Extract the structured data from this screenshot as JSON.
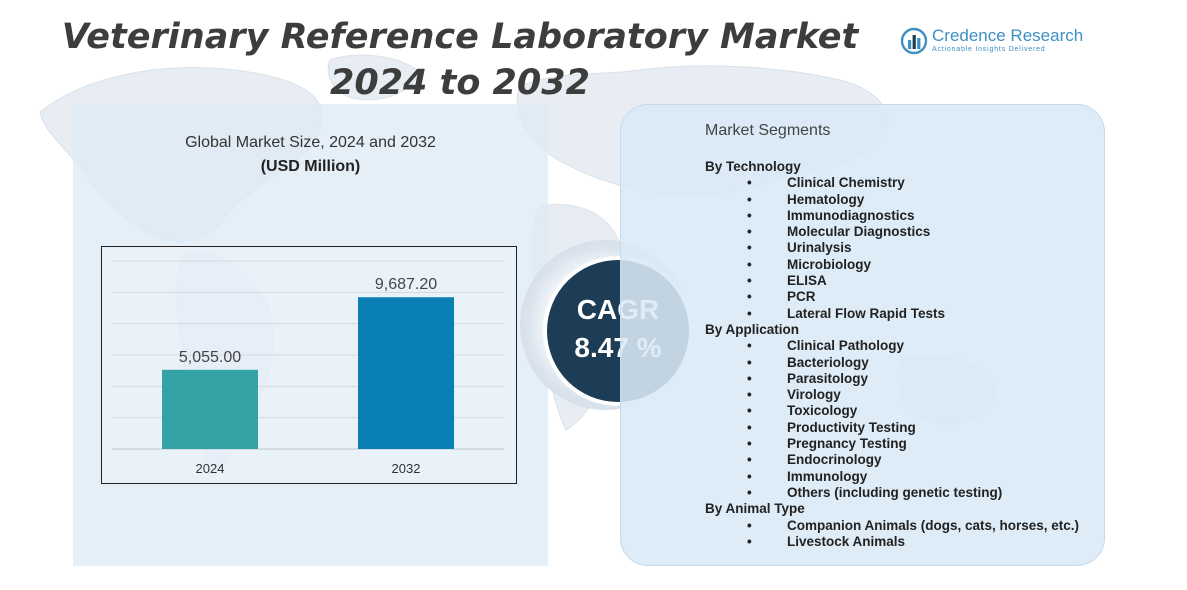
{
  "header": {
    "title_line1": "Veterinary Reference Laboratory Market",
    "title_line2": "2024 to 2032"
  },
  "logo": {
    "name": "Credence Research",
    "tagline": "Actionable Insights Delivered"
  },
  "chart": {
    "title": "Global Market Size, 2024 and 2032",
    "unit": "(USD Million)"
  },
  "chart_data": {
    "type": "bar",
    "title": "Global Market Size, 2024 and 2032",
    "ylabel": "(USD Million)",
    "xlabel": "",
    "categories": [
      "2024",
      "2032"
    ],
    "values": [
      5055.0,
      9687.2
    ],
    "data_labels": [
      "5,055.00",
      "9,687.20"
    ],
    "colors": [
      "#35a3a5",
      "#0a7fb3"
    ],
    "ylim": [
      0,
      12000
    ],
    "grid": true,
    "legend": "none"
  },
  "cagr": {
    "label": "CAGR",
    "value": "8.47 %",
    "color": "#1d3c55"
  },
  "segments": {
    "title": "Market Segments",
    "groups": [
      {
        "name": "By Technology",
        "items": [
          "Clinical Chemistry",
          "Hematology",
          "Immunodiagnostics",
          "Molecular Diagnostics",
          "Urinalysis",
          "Microbiology",
          "ELISA",
          "PCR",
          "Lateral Flow Rapid Tests"
        ]
      },
      {
        "name": "By Application",
        "items": [
          "Clinical Pathology",
          "Bacteriology",
          "Parasitology",
          "Virology",
          "Toxicology",
          "Productivity Testing",
          "Pregnancy Testing",
          "Endocrinology",
          "Immunology",
          "Others (including genetic testing)"
        ]
      },
      {
        "name": "By Animal Type",
        "items": [
          "Companion Animals (dogs, cats, horses, etc.)",
          "Livestock Animals"
        ]
      }
    ]
  }
}
